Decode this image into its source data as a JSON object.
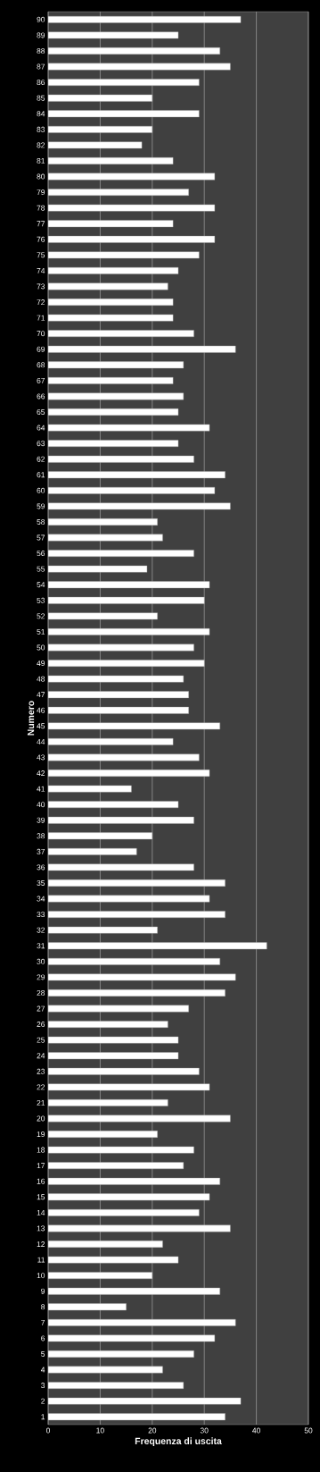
{
  "chart_data": {
    "type": "bar",
    "orientation": "horizontal",
    "xlabel": "Frequenza di uscita",
    "ylabel": "Numero",
    "categories": [
      "90",
      "89",
      "88",
      "87",
      "86",
      "85",
      "84",
      "83",
      "82",
      "81",
      "80",
      "79",
      "78",
      "77",
      "76",
      "75",
      "74",
      "73",
      "72",
      "71",
      "70",
      "69",
      "68",
      "67",
      "66",
      "65",
      "64",
      "63",
      "62",
      "61",
      "60",
      "59",
      "58",
      "57",
      "56",
      "55",
      "54",
      "53",
      "52",
      "51",
      "50",
      "49",
      "48",
      "47",
      "46",
      "45",
      "44",
      "43",
      "42",
      "41",
      "40",
      "39",
      "38",
      "37",
      "36",
      "35",
      "34",
      "33",
      "32",
      "31",
      "30",
      "29",
      "28",
      "27",
      "26",
      "25",
      "24",
      "23",
      "22",
      "21",
      "20",
      "19",
      "18",
      "17",
      "16",
      "15",
      "14",
      "13",
      "12",
      "11",
      "10",
      "9",
      "8",
      "7",
      "6",
      "5",
      "4",
      "3",
      "2",
      "1"
    ],
    "values": [
      37,
      25,
      33,
      35,
      29,
      20,
      29,
      20,
      18,
      24,
      32,
      27,
      32,
      24,
      32,
      29,
      25,
      23,
      24,
      24,
      28,
      36,
      26,
      24,
      26,
      25,
      31,
      25,
      28,
      34,
      32,
      35,
      21,
      22,
      28,
      19,
      31,
      30,
      21,
      31,
      28,
      30,
      26,
      27,
      27,
      33,
      24,
      29,
      31,
      16,
      25,
      28,
      20,
      17,
      28,
      34,
      31,
      34,
      21,
      42,
      33,
      36,
      34,
      27,
      23,
      25,
      25,
      29,
      31,
      23,
      35,
      21,
      28,
      26,
      33,
      31,
      29,
      35,
      22,
      25,
      20,
      33,
      15,
      36,
      32,
      28,
      22,
      26,
      37,
      34
    ],
    "color": "#ffffff",
    "xlim": [
      0,
      50
    ],
    "xticks": [
      0,
      10,
      20,
      30,
      40,
      50
    ],
    "grid": "x"
  }
}
